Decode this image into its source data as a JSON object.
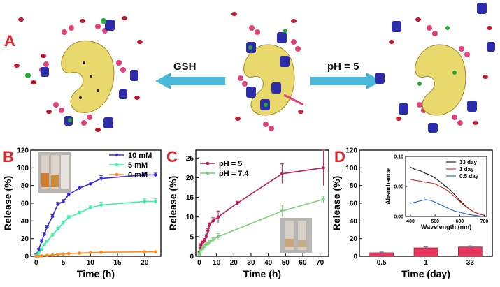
{
  "panel_a": {
    "label": "A",
    "left_arrow_label": "GSH",
    "right_arrow_label": "pH = 5"
  },
  "chart_data": [
    {
      "panel": "B",
      "type": "line",
      "xlabel": "Time (h)",
      "ylabel": "Release (%)",
      "xlim": [
        -1,
        23
      ],
      "ylim": [
        0,
        120
      ],
      "xticks": [
        0,
        5,
        10,
        15,
        20
      ],
      "yticks": [
        0,
        20,
        40,
        60,
        80,
        100,
        120
      ],
      "legend_position": "top-right",
      "inset": "photo of three vials (orange, orange, clear)",
      "series": [
        {
          "name": "10 mM",
          "color": "#3a2bd6",
          "x": [
            0,
            0.5,
            1,
            1.5,
            2,
            3,
            4,
            5,
            6,
            8,
            10,
            12,
            20,
            22
          ],
          "y": [
            2,
            8,
            17,
            25,
            33,
            45,
            59,
            62,
            70,
            77,
            82,
            88,
            92,
            92
          ],
          "err": [
            1,
            1,
            2,
            2,
            2,
            2,
            2,
            2,
            2,
            2,
            2,
            3,
            2,
            2
          ]
        },
        {
          "name": "5 mM",
          "color": "#3df0a5",
          "x": [
            0,
            0.5,
            1,
            1.5,
            2,
            3,
            4,
            5,
            6,
            8,
            10,
            12,
            20,
            22
          ],
          "y": [
            1,
            4,
            8,
            13,
            17,
            24,
            31,
            38,
            44,
            49,
            55,
            58,
            62,
            62
          ],
          "err": [
            1,
            1,
            1,
            1,
            1,
            2,
            2,
            2,
            2,
            2,
            2,
            3,
            3,
            3
          ]
        },
        {
          "name": "0 mM",
          "color": "#ff8c1a",
          "x": [
            0,
            0.5,
            1,
            2,
            3,
            4,
            5,
            6,
            8,
            10,
            12,
            20,
            22
          ],
          "y": [
            0,
            0.3,
            0.5,
            1,
            1.5,
            2,
            2.5,
            3,
            3.5,
            4,
            4.5,
            5,
            5
          ],
          "err": [
            0.3,
            0.3,
            0.3,
            0.5,
            0.5,
            0.5,
            0.5,
            0.5,
            0.5,
            0.5,
            0.5,
            0.5,
            0.5
          ]
        }
      ]
    },
    {
      "panel": "C",
      "type": "line",
      "xlabel": "Time (h)",
      "ylabel": "Release (%)",
      "xlim": [
        -2,
        75
      ],
      "ylim": [
        0,
        27
      ],
      "xticks": [
        0,
        10,
        20,
        30,
        40,
        50,
        60,
        70
      ],
      "yticks": [
        0,
        5,
        10,
        15,
        20,
        25
      ],
      "legend_position": "top-left",
      "inset": "photo of two vials",
      "series": [
        {
          "name": "pH = 5",
          "color": "#c2185b",
          "x": [
            0,
            0.5,
            1,
            2,
            3,
            4,
            5,
            6,
            8,
            11,
            22,
            48,
            72
          ],
          "y": [
            1,
            2,
            2.8,
            3.5,
            4,
            5,
            6.5,
            8,
            9,
            10,
            13.5,
            21,
            22.5
          ],
          "err": [
            0.3,
            0.3,
            0.4,
            0.4,
            0.5,
            0.5,
            0.5,
            0.5,
            0.8,
            1.5,
            0.5,
            2.5,
            4.5
          ]
        },
        {
          "name": "pH = 7.4",
          "color": "#7ed07e",
          "x": [
            0,
            0.5,
            1,
            2,
            3,
            4,
            5,
            6,
            8,
            11,
            48,
            72
          ],
          "y": [
            0.5,
            1,
            1.5,
            2,
            2.5,
            3,
            3.2,
            3.5,
            4.2,
            5,
            11.5,
            14.5
          ],
          "err": [
            0.3,
            0.3,
            0.3,
            0.4,
            0.4,
            0.4,
            0.5,
            0.5,
            0.5,
            0.8,
            1.5,
            0.8
          ]
        }
      ]
    },
    {
      "panel": "D",
      "type": "bar",
      "xlabel": "Time (day)",
      "ylabel": "Release (%)",
      "categories": [
        "0.5",
        "1",
        "33"
      ],
      "values": [
        4,
        9.5,
        10.5
      ],
      "err": [
        0.8,
        1,
        1.2
      ],
      "ylim": [
        0,
        120
      ],
      "yticks": [
        0,
        20,
        40,
        60,
        80,
        100,
        120
      ],
      "bar_color": "#e8365d",
      "inset": {
        "type": "line",
        "xlabel": "Wavelength (nm)",
        "ylabel": "Absorbance",
        "xlim": [
          380,
          710
        ],
        "ylim": [
          0,
          0.1
        ],
        "xticks": [
          400,
          500,
          600,
          700
        ],
        "ytick_labels": [
          "0.00",
          "0.05",
          "0.10"
        ],
        "yticks": [
          0,
          0.05,
          0.1
        ],
        "legend_position": "top-right",
        "series": [
          {
            "name": "33 day",
            "color": "#111111",
            "x": [
              400,
              420,
              440,
              460,
              480,
              500,
              520,
              540,
              560,
              580,
              600,
              620,
              640,
              660,
              680,
              700
            ],
            "y": [
              0.082,
              0.078,
              0.076,
              0.072,
              0.069,
              0.064,
              0.058,
              0.051,
              0.045,
              0.036,
              0.027,
              0.019,
              0.012,
              0.007,
              0.004,
              0.002
            ]
          },
          {
            "name": "1 day",
            "color": "#dd2222",
            "x": [
              400,
              420,
              440,
              460,
              480,
              500,
              520,
              540,
              560,
              580,
              600,
              620,
              640,
              660,
              680,
              700
            ],
            "y": [
              0.062,
              0.06,
              0.059,
              0.057,
              0.056,
              0.054,
              0.05,
              0.046,
              0.04,
              0.033,
              0.025,
              0.018,
              0.012,
              0.007,
              0.004,
              0.002
            ]
          },
          {
            "name": "0.5 day",
            "color": "#1f5fd1",
            "x": [
              400,
              420,
              440,
              460,
              480,
              500,
              520,
              540,
              560,
              580,
              600,
              620,
              640,
              660,
              680,
              700
            ],
            "y": [
              0.022,
              0.024,
              0.026,
              0.028,
              0.027,
              0.024,
              0.02,
              0.016,
              0.012,
              0.009,
              0.007,
              0.005,
              0.003,
              0.002,
              0.001,
              0.0
            ]
          }
        ]
      }
    }
  ]
}
